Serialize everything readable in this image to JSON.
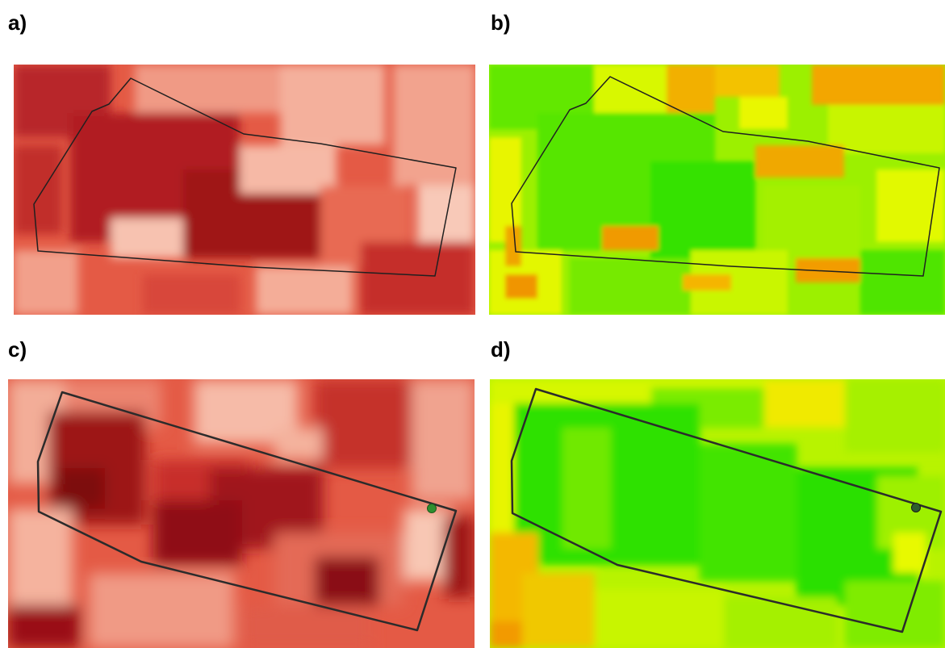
{
  "panels": [
    {
      "label": "a)"
    },
    {
      "label": "b)"
    },
    {
      "label": "c)"
    },
    {
      "label": "d)"
    }
  ],
  "colors": {
    "red_dark": "#a8141b",
    "red_mid": "#e0513f",
    "red_light": "#f6b5a0",
    "green": "#22e000",
    "yellow": "#dfff00",
    "orange": "#f2a500",
    "boundary": "#2b2b2b",
    "marker": "#2f8f2f"
  }
}
